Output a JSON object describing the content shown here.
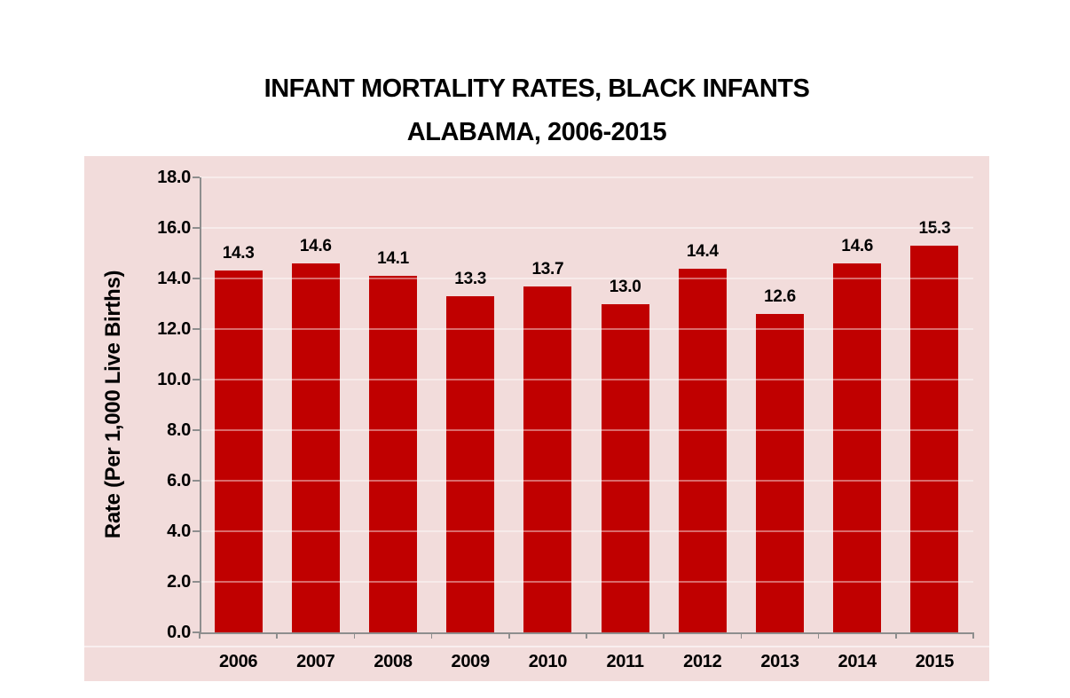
{
  "title": {
    "line1": "INFANT MORTALITY RATES, BLACK INFANTS",
    "line2": "ALABAMA, 2006-2015"
  },
  "chart_data": {
    "type": "bar",
    "title": "INFANT MORTALITY RATES, BLACK INFANTS ALABAMA, 2006-2015",
    "title_lines": [
      "INFANT MORTALITY RATES, BLACK INFANTS",
      "ALABAMA, 2006-2015"
    ],
    "categories": [
      "2006",
      "2007",
      "2008",
      "2009",
      "2010",
      "2011",
      "2012",
      "2013",
      "2014",
      "2015"
    ],
    "values": [
      14.3,
      14.6,
      14.1,
      13.3,
      13.7,
      13.0,
      14.4,
      12.6,
      14.6,
      15.3
    ],
    "data_labels": [
      "14.3",
      "14.6",
      "14.1",
      "13.3",
      "13.7",
      "13.0",
      "14.4",
      "12.6",
      "14.6",
      "15.3"
    ],
    "xlabel": "",
    "ylabel": "Rate (Per 1,000 Live Births)",
    "ylim": [
      0,
      18
    ],
    "ytick_step": 2,
    "ytick_labels": [
      "0.0",
      "2.0",
      "4.0",
      "6.0",
      "8.0",
      "10.0",
      "12.0",
      "14.0",
      "16.0",
      "18.0"
    ],
    "grid": true,
    "gridlines_over_bars": true,
    "legend": false,
    "colors": {
      "bar": "#c00000",
      "chart_background": "#f2dcdb",
      "page_background": "#ffffff",
      "axis": "#8e8e8e",
      "gridline": "rgba(255,255,255,0.42)",
      "text": "#000000"
    }
  }
}
